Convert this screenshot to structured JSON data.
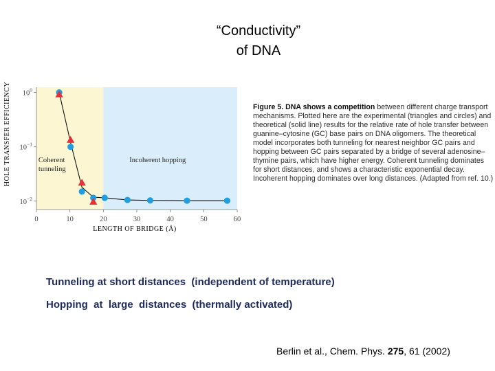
{
  "slide": {
    "title_line1": "“Conductivity”",
    "title_line2": "of  DNA",
    "bullet1": "Tunneling at short distances  (independent of temperature)",
    "bullet2": "Hopping  at  large  distances  (thermally activated)",
    "citation": {
      "before": "Berlin et al., Chem. Phys. ",
      "volume": "275",
      "after": ", 61 (2002)"
    }
  },
  "figure_caption": {
    "label": "Figure 5. DNA shows a competition",
    "text": " between different charge transport mechanisms. Plotted here are the experimental (triangles and circles) and theoretical (solid line) results for the relative rate of hole transfer between guanine–cytosine (GC) base pairs on DNA oligomers. The theoretical model incorporates both tunneling for nearest neighbor GC pairs and hopping between GC pairs separated by a bridge of several adenosine–thymine pairs, which have higher energy. Coherent tunneling dominates for short distances, and shows a characteristic exponential decay. Incoherent hopping dominates over long distances. (Adapted from ref. 10.)"
  },
  "chart_data": {
    "type": "scatter",
    "xlabel": "LENGTH OF BRIDGE (Å)",
    "ylabel": "HOLE TRANSFER EFFICIENCY",
    "xlim": [
      0,
      60
    ],
    "ylim": [
      0.007,
      1.25
    ],
    "yscale": "log",
    "x_ticks": [
      "0",
      "10",
      "20",
      "30",
      "40",
      "50",
      "60"
    ],
    "x_tick_values": [
      0,
      10,
      20,
      30,
      40,
      50,
      60
    ],
    "y_tick_base": "10",
    "y_tick_exponents": [
      "0",
      "−1",
      "−2"
    ],
    "y_tick_values": [
      1,
      0.1,
      0.01
    ],
    "regions": [
      {
        "label_line1": "Coherent",
        "label_line2": "tunneling",
        "x_range": [
          0,
          20
        ],
        "color": "#fdf6d2"
      },
      {
        "label_line1": "Incoherent hopping",
        "label_line2": "",
        "x_range": [
          20,
          60
        ],
        "color": "#d9eefa"
      }
    ],
    "series": [
      {
        "marker": "triangle",
        "color": "#e8303a",
        "x": [
          6.8,
          10.2,
          13.6,
          17.0
        ],
        "y": [
          0.93,
          0.135,
          0.022,
          0.0098
        ]
      },
      {
        "marker": "circle",
        "color": "#1f9ee0",
        "x": [
          6.8,
          10.2,
          13.6,
          17.0,
          20.4,
          27.2,
          34.0,
          45.0,
          57.0
        ],
        "y": [
          1.0,
          0.1,
          0.015,
          0.0115,
          0.0115,
          0.0105,
          0.0103,
          0.0102,
          0.0102
        ]
      },
      {
        "marker": "line",
        "color": "#111111",
        "x": [
          6.8,
          10.2,
          13.6,
          17.0,
          20.4,
          27.2,
          34.0,
          45.0,
          57.0
        ],
        "y": [
          1.0,
          0.12,
          0.018,
          0.0118,
          0.0115,
          0.0105,
          0.0103,
          0.0102,
          0.0102
        ]
      }
    ]
  }
}
